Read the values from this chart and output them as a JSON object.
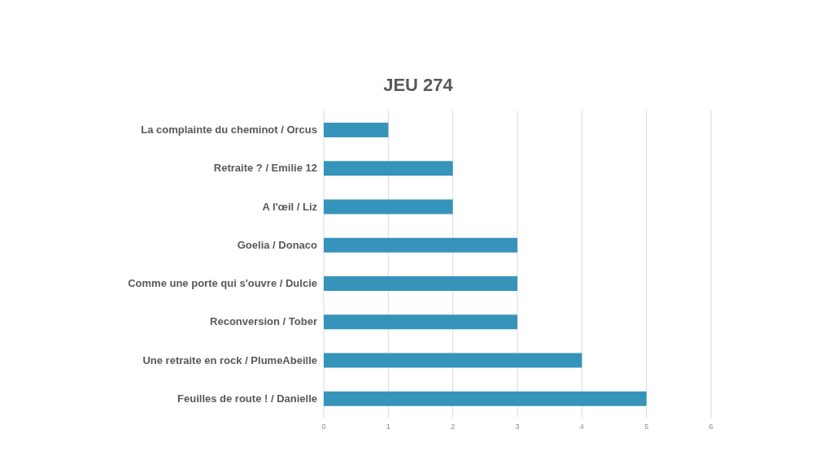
{
  "chart_data": {
    "type": "bar",
    "orientation": "horizontal",
    "title": "JEU 274",
    "categories": [
      "La complainte du cheminot / Orcus",
      "Retraite ? / Emilie 12",
      "A l'œil / Liz",
      "Goelia / Donaco",
      "Comme une porte qui s'ouvre / Dulcie",
      "Reconversion / Tober",
      "Une retraite en rock / PlumeAbeille",
      "Feuilles de route ! / Danielle"
    ],
    "values": [
      1,
      2,
      2,
      3,
      3,
      3,
      4,
      5
    ],
    "color": "#3694bb",
    "xlim": [
      0,
      6
    ],
    "xticks": [
      0,
      1,
      2,
      3,
      4,
      5,
      6
    ],
    "grid": "x"
  }
}
